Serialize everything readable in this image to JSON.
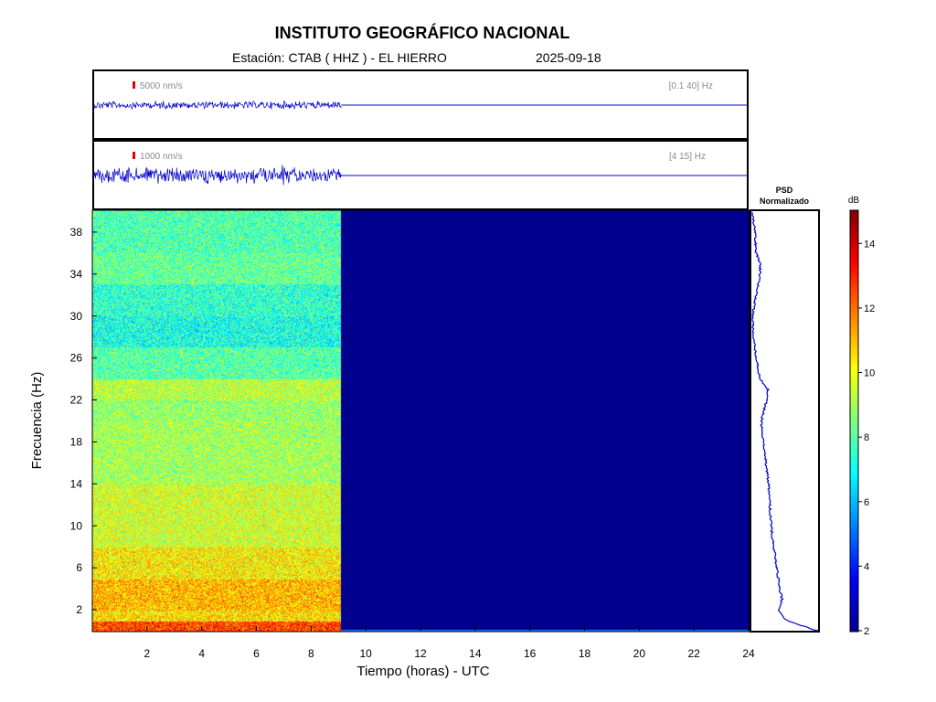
{
  "header": {
    "title": "INSTITUTO GEOGRÁFICO NACIONAL",
    "station": "Estación:  CTAB ( HHZ ) - EL HIERRO",
    "date": "2025-09-18"
  },
  "chart_data": [
    {
      "type": "line",
      "name": "seismogram-broadband",
      "scale_label": "5000 nm/s",
      "band_label": "[0.1 40] Hz",
      "x_range_hours": [
        0,
        24
      ],
      "data_until_hours": 9.1,
      "color": "#0000cc"
    },
    {
      "type": "line",
      "name": "seismogram-filtered",
      "scale_label": "1000 nm/s",
      "band_label": "[4 15] Hz",
      "x_range_hours": [
        0,
        24
      ],
      "data_until_hours": 9.1,
      "color": "#0000cc"
    },
    {
      "type": "heatmap",
      "name": "spectrogram",
      "xlabel": "Tiempo (horas) - UTC",
      "ylabel": "Frecuencia  (Hz)",
      "xlim": [
        0,
        24
      ],
      "ylim": [
        0,
        40
      ],
      "x_ticks": [
        2,
        4,
        6,
        8,
        10,
        12,
        14,
        16,
        18,
        20,
        22,
        24
      ],
      "y_ticks": [
        2,
        6,
        10,
        14,
        18,
        22,
        26,
        30,
        34,
        38
      ],
      "data_until_hours": 9.1,
      "colormap": "jet",
      "empty_color": "#00008f",
      "frequency_bands_db": [
        {
          "from_hz": 0,
          "to_hz": 1,
          "db": 12.5
        },
        {
          "from_hz": 1,
          "to_hz": 2,
          "db": 10.5
        },
        {
          "from_hz": 2,
          "to_hz": 5,
          "db": 11.0
        },
        {
          "from_hz": 5,
          "to_hz": 8,
          "db": 10.3
        },
        {
          "from_hz": 8,
          "to_hz": 14,
          "db": 9.6
        },
        {
          "from_hz": 14,
          "to_hz": 20,
          "db": 9.0
        },
        {
          "from_hz": 20,
          "to_hz": 22,
          "db": 8.8
        },
        {
          "from_hz": 22,
          "to_hz": 24,
          "db": 9.3
        },
        {
          "from_hz": 24,
          "to_hz": 27,
          "db": 8.0
        },
        {
          "from_hz": 27,
          "to_hz": 30,
          "db": 7.2
        },
        {
          "from_hz": 30,
          "to_hz": 33,
          "db": 7.5
        },
        {
          "from_hz": 33,
          "to_hz": 36,
          "db": 8.2
        },
        {
          "from_hz": 36,
          "to_hz": 40,
          "db": 7.9
        }
      ]
    },
    {
      "type": "line",
      "name": "psd-normalizado",
      "title": "PSD\nNormalizado",
      "orientation": "vertical",
      "color": "#0000cc",
      "points": [
        {
          "hz": 0,
          "psd": 1.0
        },
        {
          "hz": 1,
          "psd": 0.52
        },
        {
          "hz": 2,
          "psd": 0.4
        },
        {
          "hz": 3,
          "psd": 0.46
        },
        {
          "hz": 4,
          "psd": 0.42
        },
        {
          "hz": 6,
          "psd": 0.38
        },
        {
          "hz": 8,
          "psd": 0.33
        },
        {
          "hz": 10,
          "psd": 0.29
        },
        {
          "hz": 12,
          "psd": 0.27
        },
        {
          "hz": 14,
          "psd": 0.25
        },
        {
          "hz": 16,
          "psd": 0.21
        },
        {
          "hz": 18,
          "psd": 0.17
        },
        {
          "hz": 20,
          "psd": 0.14
        },
        {
          "hz": 22,
          "psd": 0.22
        },
        {
          "hz": 23,
          "psd": 0.24
        },
        {
          "hz": 24,
          "psd": 0.12
        },
        {
          "hz": 26,
          "psd": 0.06
        },
        {
          "hz": 28,
          "psd": 0.02
        },
        {
          "hz": 30,
          "psd": 0.0
        },
        {
          "hz": 32,
          "psd": 0.06
        },
        {
          "hz": 34,
          "psd": 0.12
        },
        {
          "hz": 35,
          "psd": 0.12
        },
        {
          "hz": 36,
          "psd": 0.06
        },
        {
          "hz": 38,
          "psd": 0.04
        },
        {
          "hz": 40,
          "psd": 0.0
        }
      ]
    },
    {
      "type": "heatmap",
      "name": "colorbar",
      "label": "dB",
      "range": [
        2,
        15
      ],
      "ticks": [
        2,
        4,
        6,
        8,
        10,
        12,
        14
      ]
    }
  ]
}
